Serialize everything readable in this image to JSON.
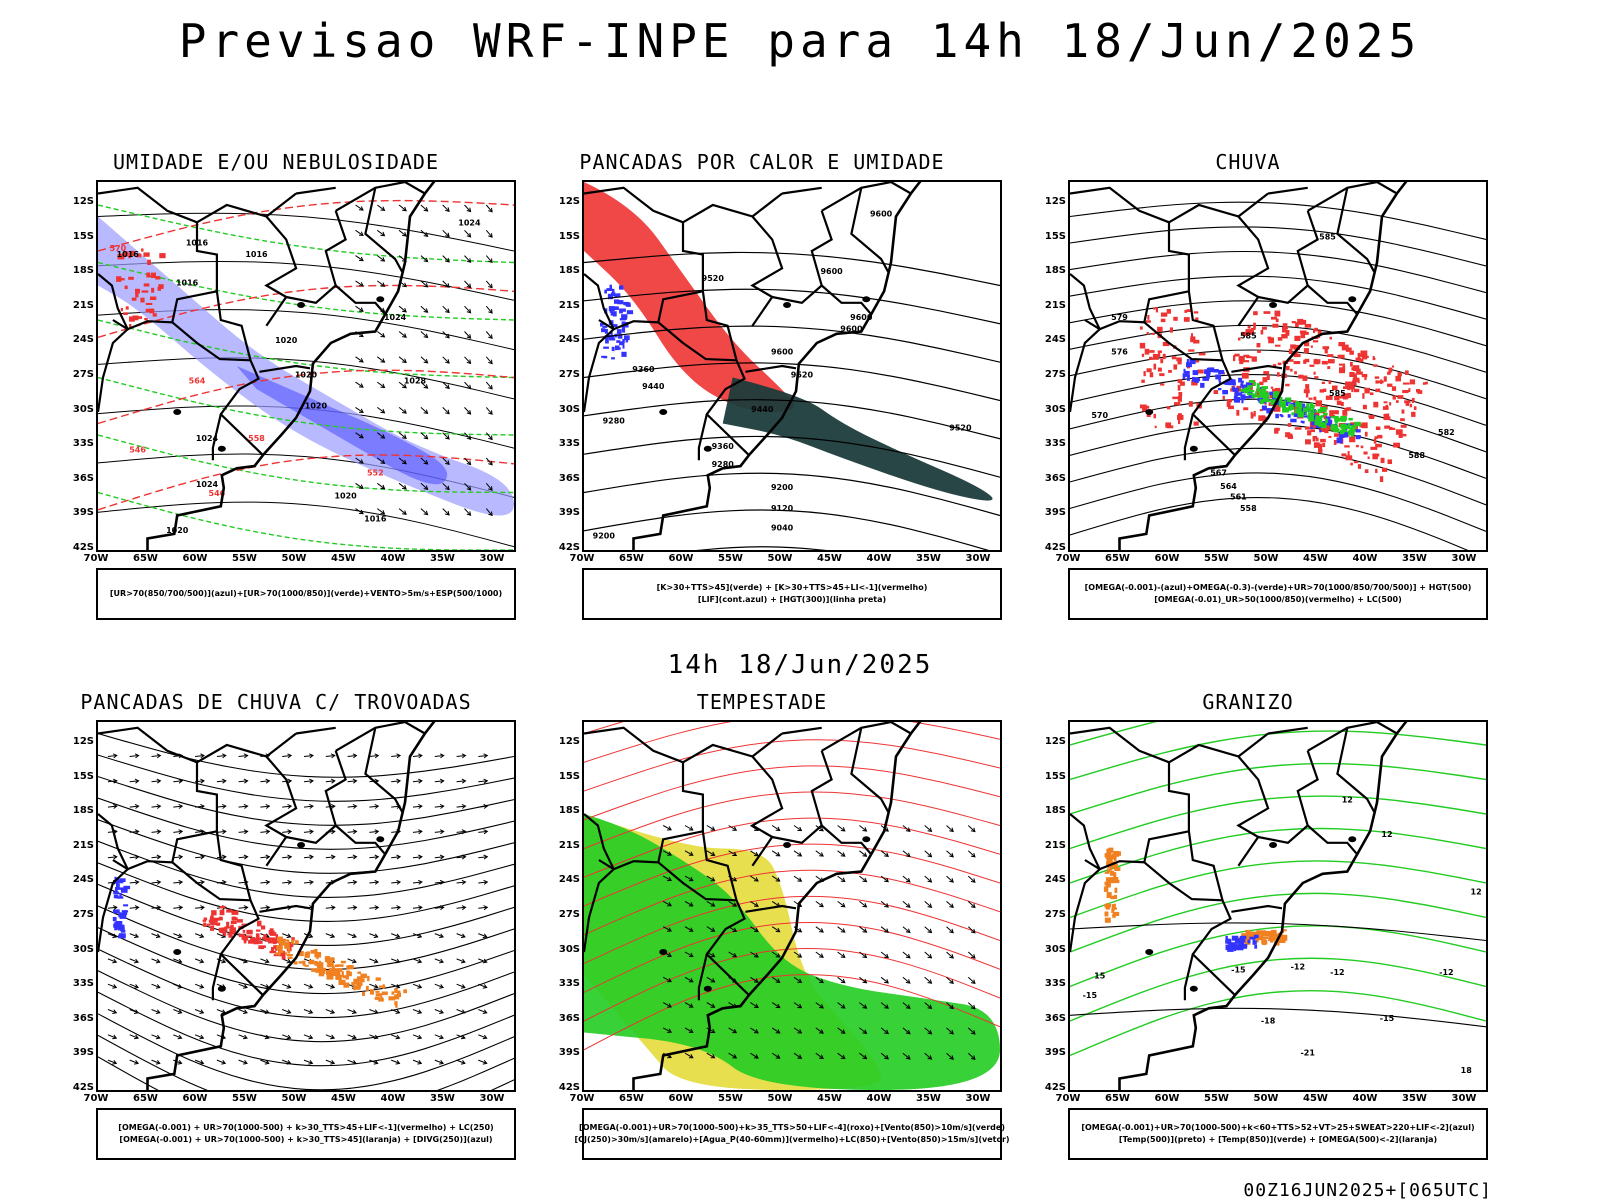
{
  "title": "Previsao WRF-INPE  para 14h 18/Jun/2025",
  "middle_label": "14h 18/Jun/2025",
  "footer": "00Z16JUN2025+[065UTC]",
  "lat_labels": [
    "12S",
    "15S",
    "18S",
    "21S",
    "24S",
    "27S",
    "30S",
    "33S",
    "36S",
    "39S",
    "42S"
  ],
  "lon_labels": [
    "70W",
    "65W",
    "60W",
    "55W",
    "50W",
    "45W",
    "40W",
    "35W",
    "30W"
  ],
  "colors": {
    "blue": "#3333ff",
    "light_blue": "#9b9bff",
    "green": "#22cc22",
    "red": "#ee3333",
    "orange": "#f08020",
    "yellow": "#e6dc3c",
    "dark_teal": "#1e3c3c",
    "black": "#000000"
  },
  "panels": [
    {
      "title": "UMIDADE E/OU NEBULOSIDADE",
      "legend": [
        "[UR>70(850/700/500)](azul)+[UR>70(1000/850)](verde)+VENTO>5m/s+ESP(500/1000)"
      ],
      "contour_labels": [
        "1016",
        "1016",
        "1016",
        "1016",
        "1020",
        "1020",
        "1020",
        "1024",
        "1024",
        "1028",
        "1024",
        "1020",
        "1016",
        "1020",
        "1024",
        "570",
        "564",
        "558",
        "546",
        "546",
        "552"
      ]
    },
    {
      "title": "PANCADAS POR CALOR E UMIDADE",
      "legend": [
        "[K>30+TTS>45](verde) + [K>30+TTS>45+LI<-1](vermelho)",
        "[LIF](cont.azul) + [HGT(300)](linha preta)"
      ],
      "contour_labels": [
        "9600",
        "9600",
        "9600",
        "9600",
        "9600",
        "9520",
        "9520",
        "9440",
        "9440",
        "9360",
        "9280",
        "9200",
        "9120",
        "9040",
        "9520",
        "9280",
        "9360",
        "9200"
      ]
    },
    {
      "title": "CHUVA",
      "legend": [
        "[OMEGA(-0.001)-(azul)+OMEGA(-0.3)-(verde)+UR>70(1000/850/700/500)] + HGT(500)",
        "[OMEGA(-0.01)_UR>50(1000/850)(vermelho) + LC(500)"
      ],
      "contour_labels": [
        "585",
        "585",
        "579",
        "576",
        "570",
        "567",
        "564",
        "561",
        "558",
        "582",
        "585",
        "588"
      ]
    },
    {
      "title": "PANCADAS DE CHUVA C/ TROVOADAS",
      "legend": [
        "[OMEGA(-0.001) + UR>70(1000-500) + k>30_TTS>45+LIF<-1](vermelho) + LC(250)",
        "[OMEGA(-0.001) + UR>70(1000-500) + k>30_TTS>45](laranja) + [DIVG(250)](azul)"
      ],
      "contour_labels": []
    },
    {
      "title": "TEMPESTADE",
      "legend": [
        "[OMEGA(-0.001)+UR>70(1000-500)+k>35_TTS>50+LIF<-4](roxo)+[Vento(850)>10m/s](verde)",
        "[CJ(250)>30m/s](amarelo)+[Agua_P(40-60mm)](vermelho)+LC(850)+[Vento(850)>15m/s](vetor)"
      ],
      "contour_labels": []
    },
    {
      "title": "GRANIZO",
      "legend": [
        "[OMEGA(-0.001)+UR>70(1000-500)+k<60+TTS>52+VT>25+SWEAT>220+LIF<-2](azul)",
        "[Temp(500)](preto) + [Temp(850)](verde) + [OMEGA(500)<-2](laranja)"
      ],
      "contour_labels": [
        "-12",
        "-12",
        "-12",
        "-15",
        "-15",
        "-18",
        "-21",
        "-15",
        "12",
        "12",
        "12",
        "15",
        "18"
      ]
    }
  ]
}
